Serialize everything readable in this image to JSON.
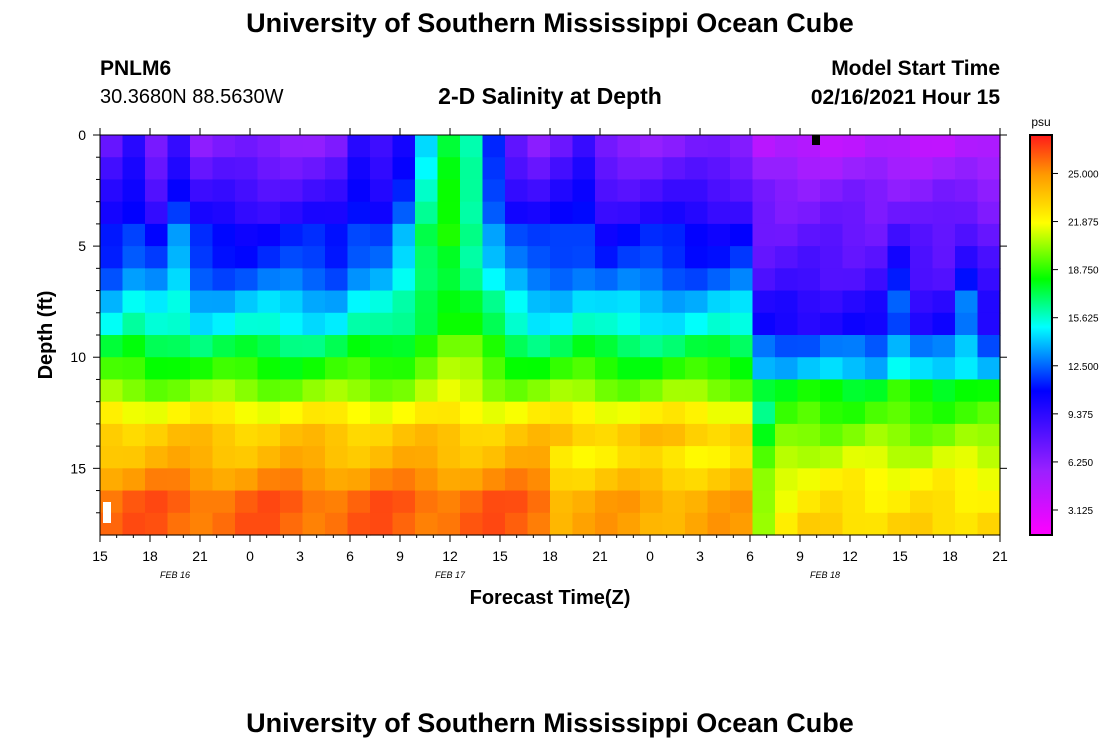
{
  "page": {
    "title_top": "University of Southern Mississippi Ocean Cube",
    "title_bottom": "University of Southern Mississippi Ocean Cube",
    "station_id": "PNLM6",
    "station_coords": "30.3680N 88.5630W",
    "model_start_label": "Model Start Time",
    "model_start_value": "02/16/2021 Hour 15"
  },
  "colors": {
    "ramp": [
      "#ff00ff",
      "#9b20ff",
      "#0000ff",
      "#00ffff",
      "#00ff00",
      "#ffff00",
      "#ff9b00",
      "#ff1a1a"
    ]
  },
  "chart_data": {
    "type": "heatmap",
    "title": "2-D Salinity at Depth",
    "xlabel": "Forecast Time(Z)",
    "ylabel": "Depth (ft)",
    "colorbar_unit": "psu",
    "x_tick_labels": [
      "15",
      "18",
      "21",
      "0",
      "3",
      "6",
      "9",
      "12",
      "15",
      "18",
      "21",
      "0",
      "3",
      "6",
      "9",
      "12",
      "15",
      "18",
      "21"
    ],
    "x_range_hours": [
      0,
      54
    ],
    "y_ticks": [
      0,
      5,
      10,
      15
    ],
    "y_range_ft": [
      0,
      18
    ],
    "date_labels": [
      {
        "label": "FEB 16",
        "hour": 4.5
      },
      {
        "label": "FEB 17",
        "hour": 21
      },
      {
        "label": "FEB 18",
        "hour": 43.5
      }
    ],
    "colorbar_ticks": [
      "25.000",
      "21.875",
      "18.750",
      "15.625",
      "12.500",
      "9.375",
      "6.250",
      "3.125"
    ],
    "colorbar_range": [
      1.5,
      27.5
    ],
    "transition_hour": 38.5,
    "note": "Salinity (psu) vs forecast hour and depth; columns every ~1.35 h, 18 depth rows; values approximated from colors",
    "regime1": {
      "hours": [
        0,
        54
      ],
      "profile_psu": [
        6.5,
        7.5,
        8.5,
        9.5,
        11,
        11.5,
        12.5,
        14,
        15,
        17,
        18.5,
        20,
        22,
        23.5,
        24,
        25,
        26,
        26
      ],
      "spike_hours": [
        1.6,
        4.5,
        16,
        28.5
      ],
      "front_hour": 26.5
    },
    "regime2": {
      "hours": [
        38.5,
        54
      ],
      "profile_psu": [
        4.5,
        5.5,
        6.5,
        7,
        7.5,
        8,
        8.5,
        9.5,
        10,
        12.5,
        14,
        18,
        19,
        20,
        21,
        22,
        22.5,
        23
      ],
      "spike_hours": [
        48,
        52
      ]
    }
  }
}
